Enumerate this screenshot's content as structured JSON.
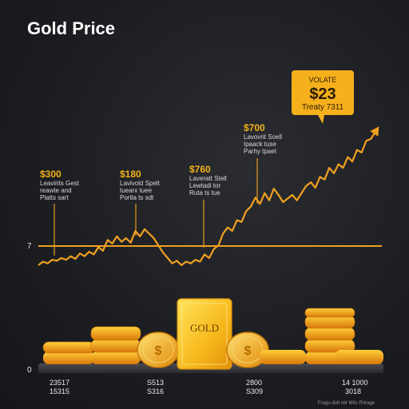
{
  "colors": {
    "accent": "#f5a623",
    "line": "#f0a020",
    "background": "#1c1d21",
    "callout": "#f6b01c"
  },
  "chart_data": {
    "type": "line",
    "title": "Gold Price",
    "series": [
      {
        "values": [
          20,
          24,
          22,
          26,
          25,
          28,
          26,
          30,
          27,
          33,
          30,
          35,
          32,
          40,
          36,
          48,
          44,
          52,
          46,
          50,
          45,
          58,
          52,
          60,
          55,
          50,
          42,
          34,
          28,
          22,
          25,
          20,
          24,
          22,
          26,
          24,
          32,
          28,
          38,
          42,
          55,
          62,
          58,
          70,
          68,
          80,
          85,
          95,
          88,
          100,
          92,
          105,
          98,
          90,
          94,
          98,
          92,
          100,
          108,
          112,
          106,
          118,
          115,
          128,
          122,
          132,
          128,
          140,
          135,
          148,
          145,
          158,
          160,
          168
        ]
      }
    ],
    "y_axis_labels": [
      "7",
      "0"
    ],
    "annotations": [
      {
        "value": "$300",
        "lines": [
          "Leavirits Gest",
          "reawte and",
          "Platts sart"
        ]
      },
      {
        "value": "$180",
        "lines": [
          "Lavivold Spelt",
          "tuearx tuee",
          "Portla ts sdt"
        ]
      },
      {
        "value": "$760",
        "lines": [
          "Laveratt Stell",
          "Lewtadi tor",
          "Ruta ts tue"
        ]
      },
      {
        "value": "$700",
        "lines": [
          "Lavovrit Soell",
          "Ipaack tuse",
          "Parhy tpaet"
        ]
      }
    ],
    "callout": {
      "heading": "VOLATE",
      "value": "$23",
      "footer": "Treaty 7311"
    },
    "x_tick_labels": [
      {
        "top": "23517",
        "bottom": "15315"
      },
      {
        "top": "S513",
        "bottom": "S316"
      },
      {
        "top": "2800",
        "bottom": "S309"
      },
      {
        "top": "14 1000",
        "bottom": "3018"
      }
    ],
    "gold_bar_label": "GOLD",
    "footnote": "Fragu doit sttr Mits Prtrage"
  }
}
